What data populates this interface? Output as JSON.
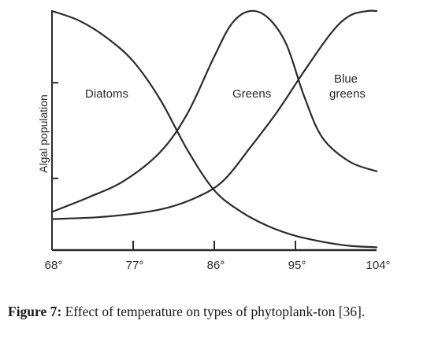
{
  "chart_data": {
    "type": "line",
    "ylabel": "Algal population",
    "xlabel": "",
    "x_ticks": [
      "68°",
      "77°",
      "86°",
      "95°",
      "104°"
    ],
    "xlim": [
      68,
      104
    ],
    "ylim": [
      0,
      100
    ],
    "grid": false,
    "series": [
      {
        "name": "Diatoms",
        "x": [
          68,
          71,
          74,
          77,
          80,
          83,
          86,
          89,
          92,
          95,
          98,
          101,
          104
        ],
        "y": [
          100,
          96,
          89,
          79,
          63,
          42,
          25,
          16,
          10,
          6,
          3.5,
          1.8,
          1.2
        ]
      },
      {
        "name": "Greens",
        "x": [
          68,
          72,
          76,
          80,
          83,
          86,
          88,
          90,
          92,
          94,
          96,
          98,
          101,
          104
        ],
        "y": [
          16,
          22,
          29,
          41,
          57,
          81,
          95,
          100,
          97,
          86,
          64,
          47,
          37,
          33
        ]
      },
      {
        "name": "Blue greens",
        "x": [
          68,
          74,
          80,
          84,
          87,
          90,
          93,
          96,
          99,
          101,
          103,
          104
        ],
        "y": [
          13,
          14,
          17,
          22,
          29,
          43,
          58,
          75,
          91,
          98,
          100,
          100
        ]
      }
    ],
    "annotations": [
      "Diatoms",
      "Greens",
      "Blue",
      "greens"
    ]
  },
  "caption": {
    "label": "Figure 7:",
    "text": " Effect of temperature on types of phytoplank-ton [36]."
  }
}
